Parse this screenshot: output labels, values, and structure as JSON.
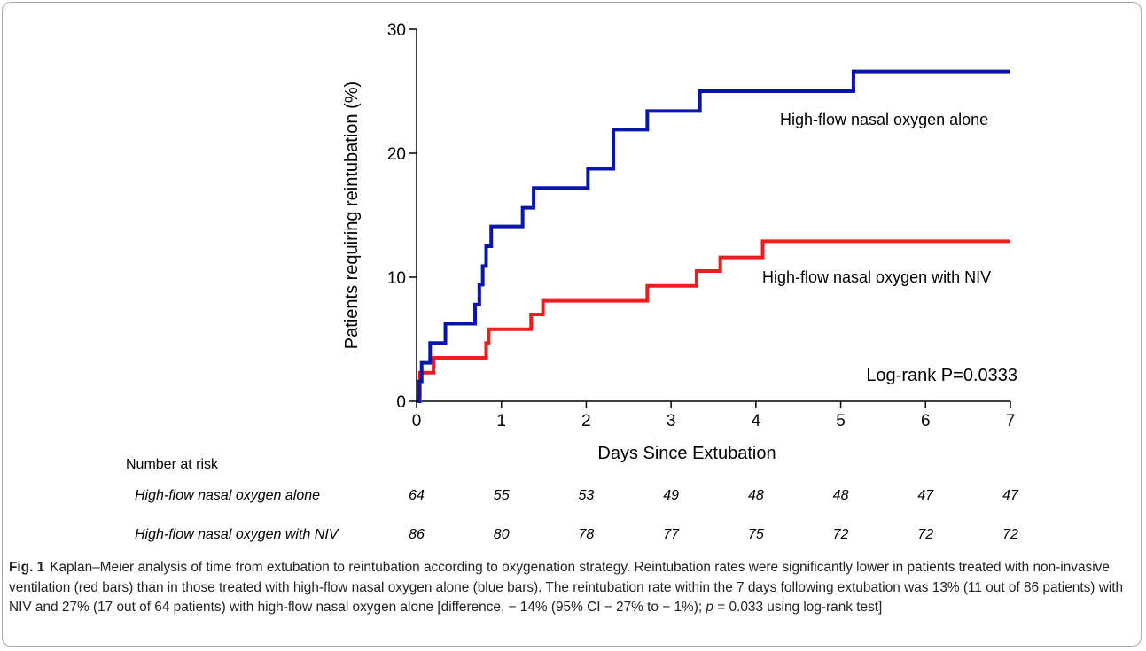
{
  "chart_data": {
    "type": "line",
    "subtype": "kaplan-meier-step",
    "title": "",
    "xlabel": "Days Since Extubation",
    "ylabel": "Patients requiring reintubation (%)",
    "xlim": [
      0,
      7
    ],
    "ylim": [
      0,
      30
    ],
    "x_ticks": [
      0,
      1,
      2,
      3,
      4,
      5,
      6,
      7
    ],
    "y_ticks": [
      0,
      10,
      20,
      30
    ],
    "grid": false,
    "series": [
      {
        "name": "High-flow nasal oxygen alone",
        "color": "#0a16a8",
        "x": [
          0,
          0.03,
          0.06,
          0.16,
          0.34,
          0.69,
          0.74,
          0.78,
          0.82,
          0.88,
          1.25,
          1.38,
          2.02,
          2.32,
          2.72,
          3.34,
          5.15,
          7.0
        ],
        "y": [
          0,
          1.6,
          3.1,
          4.7,
          6.25,
          7.8,
          9.4,
          10.9,
          12.5,
          14.1,
          15.6,
          17.2,
          18.75,
          21.9,
          23.4,
          25.0,
          26.6,
          26.6
        ]
      },
      {
        "name": "High-flow nasal oxygen with NIV",
        "color": "#ee1c1c",
        "x": [
          0,
          0.04,
          0.2,
          0.82,
          0.85,
          1.35,
          1.49,
          2.72,
          3.3,
          3.58,
          4.08,
          7.0
        ],
        "y": [
          0,
          2.3,
          3.5,
          4.7,
          5.8,
          7.0,
          8.1,
          9.3,
          10.5,
          11.6,
          12.9,
          12.9
        ]
      }
    ],
    "annotations": {
      "blue_label": "High-flow nasal oxygen alone",
      "red_label": "High-flow nasal oxygen with NIV",
      "logrank": "Log-rank P=0.0333"
    },
    "number_at_risk": {
      "title": "Number at risk",
      "rows": [
        {
          "label": "High-flow nasal oxygen alone",
          "values": [
            "64",
            "55",
            "53",
            "49",
            "48",
            "48",
            "47",
            "47"
          ]
        },
        {
          "label": "High-flow nasal oxygen with NIV",
          "values": [
            "86",
            "80",
            "78",
            "77",
            "75",
            "72",
            "72",
            "72"
          ]
        }
      ]
    }
  },
  "caption": {
    "label": "Fig. 1",
    "text_before_p": "Kaplan–Meier analysis of time from extubation to reintubation according to oxygenation strategy. Reintubation rates were significantly lower in patients treated with non-invasive ventilation (red bars) than in those treated with high-flow nasal oxygen alone (blue bars). The reintubation rate within the 7 days following extubation was 13% (11 out of 86 patients) with NIV and 27% (17 out of 64 patients) with high-flow nasal oxygen alone [difference, − 14% (95% CI − 27% to − 1%); ",
    "p_symbol": "p",
    "text_after_p": " = 0.033 using log-rank test]"
  }
}
